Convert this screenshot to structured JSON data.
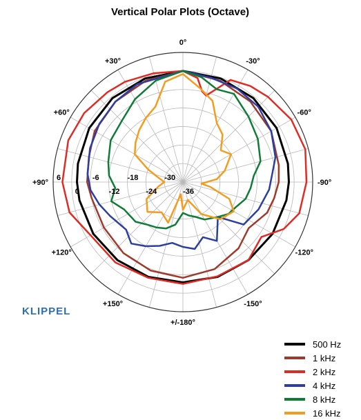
{
  "chart_data": {
    "type": "polar-line",
    "title": "Vertical Polar Plots (Octave)",
    "radial_unit": "dB",
    "radial_ticks": [
      "6",
      "0",
      "-6",
      "-12",
      "-18",
      "-24",
      "-30",
      "-36"
    ],
    "radial_range": [
      -36,
      6
    ],
    "angle_labels": [
      {
        "deg": 0,
        "text": "0°"
      },
      {
        "deg": -30,
        "text": "-30°"
      },
      {
        "deg": -60,
        "text": "-60°"
      },
      {
        "deg": -90,
        "text": "-90°"
      },
      {
        "deg": -120,
        "text": "-120°"
      },
      {
        "deg": -150,
        "text": "-150°"
      },
      {
        "deg": 180,
        "text": "+/-180°"
      },
      {
        "deg": 150,
        "text": "+150°"
      },
      {
        "deg": 120,
        "text": "+120°"
      },
      {
        "deg": 90,
        "text": "+90°"
      },
      {
        "deg": 60,
        "text": "+60°"
      },
      {
        "deg": 30,
        "text": "+30°"
      }
    ],
    "grid": true,
    "legend_position": "bottom-right",
    "series": [
      {
        "name": "500 Hz",
        "color": "#000000",
        "points": [
          [
            0,
            0
          ],
          [
            -20,
            -0.3
          ],
          [
            -40,
            -0.5
          ],
          [
            -60,
            -1
          ],
          [
            -80,
            -1.5
          ],
          [
            -90,
            -1.7
          ],
          [
            -100,
            -2
          ],
          [
            -120,
            -2.5
          ],
          [
            -140,
            -3
          ],
          [
            -160,
            -3.3
          ],
          [
            180,
            -3.5
          ],
          [
            160,
            -3.3
          ],
          [
            140,
            -3
          ],
          [
            120,
            -2.5
          ],
          [
            100,
            -2
          ],
          [
            90,
            -1.7
          ],
          [
            80,
            -1.5
          ],
          [
            60,
            -1
          ],
          [
            40,
            -0.5
          ],
          [
            20,
            -0.3
          ]
        ]
      },
      {
        "name": "1 kHz",
        "color": "#a0392b",
        "points": [
          [
            0,
            0
          ],
          [
            -20,
            -1
          ],
          [
            -40,
            -2
          ],
          [
            -60,
            -3
          ],
          [
            -80,
            -4.5
          ],
          [
            -90,
            -5
          ],
          [
            -100,
            -6
          ],
          [
            -110,
            -7
          ],
          [
            -125,
            -10
          ],
          [
            -140,
            -8
          ],
          [
            -160,
            -6
          ],
          [
            180,
            -5
          ],
          [
            160,
            -5.5
          ],
          [
            140,
            -6
          ],
          [
            120,
            -6.5
          ],
          [
            100,
            -6
          ],
          [
            90,
            -5
          ],
          [
            75,
            -4.5
          ],
          [
            60,
            -3
          ],
          [
            40,
            -2
          ],
          [
            20,
            -1
          ]
        ]
      },
      {
        "name": "2 kHz",
        "color": "#e02b25",
        "points": [
          [
            0,
            0
          ],
          [
            -8,
            -2
          ],
          [
            -12,
            -6
          ],
          [
            -15,
            -7
          ],
          [
            -25,
            0.5
          ],
          [
            -35,
            2
          ],
          [
            -45,
            3
          ],
          [
            -60,
            4.5
          ],
          [
            -75,
            5
          ],
          [
            -90,
            4
          ],
          [
            -105,
            3
          ],
          [
            -115,
            0
          ],
          [
            -125,
            -5
          ],
          [
            -140,
            -3
          ],
          [
            -160,
            -3.5
          ],
          [
            180,
            -3
          ],
          [
            160,
            -3
          ],
          [
            140,
            -2
          ],
          [
            120,
            -1.5
          ],
          [
            105,
            2
          ],
          [
            90,
            3
          ],
          [
            70,
            3.5
          ],
          [
            55,
            3
          ],
          [
            40,
            2
          ],
          [
            30,
            1.5
          ],
          [
            15,
            0.5
          ]
        ]
      },
      {
        "name": "4 kHz",
        "color": "#2c3fa1",
        "points": [
          [
            0,
            0
          ],
          [
            -15,
            -1
          ],
          [
            -30,
            -1
          ],
          [
            -45,
            -1.5
          ],
          [
            -60,
            -3
          ],
          [
            -75,
            -5
          ],
          [
            -85,
            -7
          ],
          [
            -95,
            -8
          ],
          [
            -110,
            -10
          ],
          [
            -125,
            -12
          ],
          [
            -135,
            -20
          ],
          [
            -150,
            -14
          ],
          [
            -160,
            -17
          ],
          [
            -170,
            -14
          ],
          [
            180,
            -15
          ],
          [
            170,
            -16
          ],
          [
            160,
            -14
          ],
          [
            150,
            -12
          ],
          [
            140,
            -10
          ],
          [
            130,
            -12
          ],
          [
            115,
            -10
          ],
          [
            105,
            -8
          ],
          [
            95,
            -6
          ],
          [
            85,
            -5
          ],
          [
            70,
            -4
          ],
          [
            55,
            -3
          ],
          [
            40,
            -2
          ],
          [
            25,
            -1
          ]
        ]
      },
      {
        "name": "8 kHz",
        "color": "#0d7d35",
        "points": [
          [
            0,
            0
          ],
          [
            -10,
            -1.5
          ],
          [
            -20,
            -4
          ],
          [
            -30,
            -3
          ],
          [
            -45,
            -6
          ],
          [
            -60,
            -8
          ],
          [
            -75,
            -10
          ],
          [
            -85,
            -13
          ],
          [
            -95,
            -14
          ],
          [
            -105,
            -15
          ],
          [
            -115,
            -17
          ],
          [
            -125,
            -18
          ],
          [
            -135,
            -20
          ],
          [
            -150,
            -22
          ],
          [
            -160,
            -24
          ],
          [
            -170,
            -25
          ],
          [
            180,
            -26
          ],
          [
            170,
            -22
          ],
          [
            160,
            -20
          ],
          [
            150,
            -19
          ],
          [
            140,
            -18
          ],
          [
            130,
            -16
          ],
          [
            115,
            -15
          ],
          [
            105,
            -12
          ],
          [
            95,
            -14
          ],
          [
            85,
            -12
          ],
          [
            75,
            -11
          ],
          [
            60,
            -9
          ],
          [
            45,
            -8
          ],
          [
            30,
            -5
          ],
          [
            15,
            -2
          ]
        ]
      },
      {
        "name": "16 kHz",
        "color": "#f39c1e",
        "points": [
          [
            0,
            -1
          ],
          [
            -10,
            -5
          ],
          [
            -20,
            -8
          ],
          [
            -30,
            -14
          ],
          [
            -40,
            -16
          ],
          [
            -50,
            -20
          ],
          [
            -60,
            -18
          ],
          [
            -75,
            -22
          ],
          [
            -85,
            -25
          ],
          [
            -95,
            -30
          ],
          [
            -100,
            -27
          ],
          [
            -110,
            -20
          ],
          [
            -120,
            -17
          ],
          [
            -135,
            -19
          ],
          [
            -150,
            -24
          ],
          [
            -165,
            -30
          ],
          [
            180,
            -27
          ],
          [
            170,
            -32
          ],
          [
            160,
            -22
          ],
          [
            145,
            -24
          ],
          [
            130,
            -21
          ],
          [
            115,
            -23
          ],
          [
            100,
            -28
          ],
          [
            90,
            -30
          ],
          [
            80,
            -28
          ],
          [
            70,
            -24
          ],
          [
            60,
            -18
          ],
          [
            50,
            -16
          ],
          [
            40,
            -14
          ],
          [
            30,
            -12
          ],
          [
            20,
            -10
          ],
          [
            10,
            -3
          ]
        ]
      }
    ]
  },
  "logo_text": "KLIPPEL",
  "legend": [
    {
      "label": "500 Hz",
      "color": "#000000"
    },
    {
      "label": "1 kHz",
      "color": "#a0392b"
    },
    {
      "label": "2 kHz",
      "color": "#e02b25"
    },
    {
      "label": "4 kHz",
      "color": "#2c3fa1"
    },
    {
      "label": "8 kHz",
      "color": "#0d7d35"
    },
    {
      "label": "16 kHz",
      "color": "#f39c1e"
    }
  ]
}
